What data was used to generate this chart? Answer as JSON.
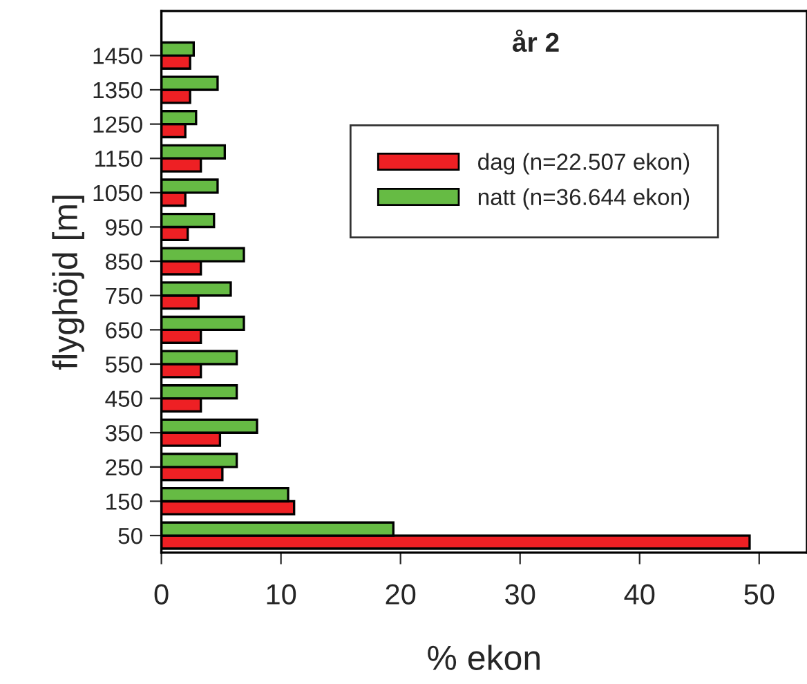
{
  "chart_data": {
    "type": "bar",
    "orientation": "horizontal",
    "categories": [
      "1450",
      "1350",
      "1250",
      "1150",
      "1050",
      "950",
      "850",
      "750",
      "650",
      "550",
      "450",
      "350",
      "250",
      "150",
      "50"
    ],
    "series": [
      {
        "name": "dag (n=22.507 ekon)",
        "color": "#ee2024",
        "values": [
          2.4,
          2.4,
          2.0,
          3.3,
          2.0,
          2.2,
          3.3,
          3.1,
          3.3,
          3.3,
          3.3,
          4.9,
          5.1,
          11.1,
          49.2
        ]
      },
      {
        "name": "natt (n=36.644 ekon)",
        "color": "#66bb44",
        "values": [
          2.7,
          4.7,
          2.9,
          5.3,
          4.7,
          4.4,
          6.9,
          5.8,
          6.9,
          6.3,
          6.3,
          8.0,
          6.3,
          10.6,
          19.4
        ]
      }
    ],
    "xlim": [
      0,
      54
    ],
    "xticks": [
      0,
      10,
      20,
      30,
      40,
      50
    ],
    "xlabel": "% ekon",
    "ylabel": "flyghöjd [m]",
    "annotations": [
      "år 2"
    ],
    "legend": "top right",
    "grid": false
  }
}
